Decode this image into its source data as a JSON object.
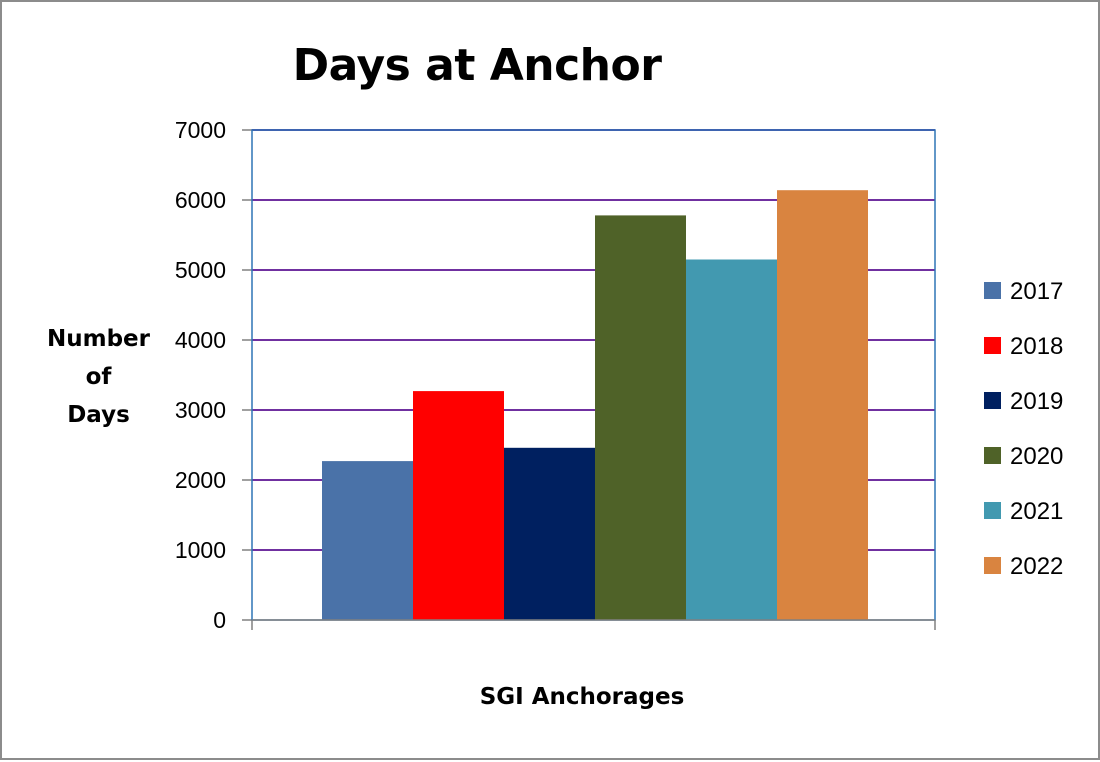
{
  "chart_data": {
    "type": "bar",
    "title": "Days at Anchor",
    "ylabel_lines": [
      "Number",
      "of",
      "Days"
    ],
    "xlabel": "SGI Anchorages",
    "ylim": [
      0,
      7000
    ],
    "yticks": [
      0,
      1000,
      2000,
      3000,
      4000,
      5000,
      6000,
      7000
    ],
    "grid": true,
    "legend_position": "right",
    "series": [
      {
        "name": "2017",
        "value": 2270,
        "color": "#4a72a8"
      },
      {
        "name": "2018",
        "value": 3270,
        "color": "#ff0000"
      },
      {
        "name": "2019",
        "value": 2460,
        "color": "#002060"
      },
      {
        "name": "2020",
        "value": 5780,
        "color": "#4f6228"
      },
      {
        "name": "2021",
        "value": 5150,
        "color": "#4299b0"
      },
      {
        "name": "2022",
        "value": 6140,
        "color": "#d98440"
      }
    ],
    "colors": {
      "gridline": "#7030a0",
      "plot_border": "#2e75b6",
      "axis": "#808080"
    }
  }
}
